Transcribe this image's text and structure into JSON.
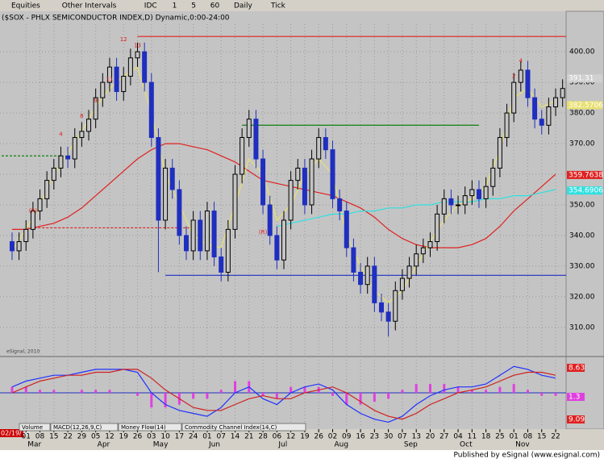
{
  "toolbar": {
    "items": [
      "Equities",
      "Other Intervals",
      "IDC",
      "1",
      "5",
      "60",
      "Daily",
      "Tick"
    ]
  },
  "chart_data": {
    "type": "candlestick",
    "title": "($SOX - PHLX SEMICONDUCTOR INDEX,D) Dynamic,0:00-24:00",
    "watermark": "eSignal, 2010",
    "start_label": "02/19/10",
    "xlim": [
      -1.5,
      79.5
    ],
    "ylim": [
      301,
      409
    ],
    "yticks": [
      {
        "value": 310,
        "label": "310.00"
      },
      {
        "value": 320,
        "label": "320.00"
      },
      {
        "value": 330,
        "label": "330.00"
      },
      {
        "value": 340,
        "label": "340.00"
      },
      {
        "value": 350,
        "label": "350.00"
      },
      {
        "value": 360,
        "label": "360.00"
      },
      {
        "value": 370,
        "label": "370.00"
      },
      {
        "value": 380,
        "label": "380.00"
      },
      {
        "value": 390,
        "label": "390.00"
      },
      {
        "value": 400,
        "label": "400.00"
      }
    ],
    "xticks": [
      {
        "value": 2,
        "label": "01"
      },
      {
        "value": 4,
        "label": "08"
      },
      {
        "value": 6,
        "label": "15"
      },
      {
        "value": 8,
        "label": "22"
      },
      {
        "value": 10,
        "label": "29"
      },
      {
        "value": 12,
        "label": "05"
      },
      {
        "value": 14,
        "label": "12"
      },
      {
        "value": 16,
        "label": "19"
      },
      {
        "value": 18,
        "label": "26"
      },
      {
        "value": 20,
        "label": "03"
      },
      {
        "value": 22,
        "label": "10"
      },
      {
        "value": 24,
        "label": "17"
      },
      {
        "value": 26,
        "label": "24"
      },
      {
        "value": 28,
        "label": "01"
      },
      {
        "value": 30,
        "label": "07"
      },
      {
        "value": 32,
        "label": "14"
      },
      {
        "value": 34,
        "label": "21"
      },
      {
        "value": 36,
        "label": "28"
      },
      {
        "value": 38,
        "label": "06"
      },
      {
        "value": 40,
        "label": "12"
      },
      {
        "value": 42,
        "label": "19"
      },
      {
        "value": 44,
        "label": "26"
      },
      {
        "value": 46,
        "label": "02"
      },
      {
        "value": 48,
        "label": "09"
      },
      {
        "value": 50,
        "label": "16"
      },
      {
        "value": 52,
        "label": "23"
      },
      {
        "value": 54,
        "label": "30"
      },
      {
        "value": 56,
        "label": "07"
      },
      {
        "value": 58,
        "label": "13"
      },
      {
        "value": 60,
        "label": "20"
      },
      {
        "value": 62,
        "label": "27"
      },
      {
        "value": 64,
        "label": "04"
      },
      {
        "value": 66,
        "label": "11"
      },
      {
        "value": 68,
        "label": "18"
      },
      {
        "value": 70,
        "label": "25"
      },
      {
        "value": 72,
        "label": "01"
      },
      {
        "value": 74,
        "label": "08"
      },
      {
        "value": 76,
        "label": "15"
      },
      {
        "value": 78,
        "label": "22"
      }
    ],
    "months": [
      {
        "value": 2,
        "label": "Mar"
      },
      {
        "value": 12,
        "label": "Apr"
      },
      {
        "value": 20,
        "label": "May"
      },
      {
        "value": 28,
        "label": "Jun"
      },
      {
        "value": 38,
        "label": "Jul"
      },
      {
        "value": 46,
        "label": "Aug"
      },
      {
        "value": 56,
        "label": "Sep"
      },
      {
        "value": 64,
        "label": "Oct"
      },
      {
        "value": 72,
        "label": "Nov"
      }
    ],
    "open": [
      338,
      335,
      338,
      342,
      348,
      352,
      358,
      362,
      366,
      365,
      372,
      374,
      378,
      385,
      390,
      395,
      387,
      392,
      398,
      400,
      390,
      372,
      345,
      362,
      355,
      340,
      335,
      345,
      335,
      348,
      333,
      328,
      342,
      360,
      372,
      378,
      365,
      350,
      340,
      332,
      345,
      358,
      362,
      350,
      365,
      372,
      368,
      352,
      348,
      336,
      328,
      324,
      330,
      318,
      315,
      312,
      322,
      326,
      330,
      334,
      336,
      338,
      347,
      352,
      350,
      350,
      353,
      355,
      352,
      356,
      362,
      372,
      380,
      390,
      394,
      385,
      378,
      376,
      382,
      385
    ],
    "high": [
      341,
      341,
      345,
      351,
      355,
      361,
      365,
      369,
      369,
      375,
      377,
      381,
      388,
      393,
      398,
      398,
      395,
      401,
      403,
      403,
      393,
      375,
      365,
      365,
      358,
      343,
      348,
      348,
      351,
      351,
      336,
      345,
      363,
      375,
      381,
      381,
      368,
      353,
      343,
      348,
      361,
      365,
      365,
      368,
      375,
      375,
      371,
      355,
      351,
      339,
      331,
      333,
      333,
      321,
      318,
      325,
      329,
      333,
      337,
      339,
      341,
      350,
      355,
      355,
      353,
      356,
      358,
      358,
      359,
      365,
      375,
      383,
      393,
      397,
      397,
      388,
      381,
      385,
      388,
      391
    ],
    "low": [
      332,
      332,
      335,
      339,
      345,
      349,
      355,
      359,
      362,
      362,
      369,
      371,
      375,
      382,
      387,
      384,
      384,
      389,
      395,
      387,
      369,
      328,
      342,
      352,
      337,
      332,
      332,
      332,
      332,
      330,
      325,
      325,
      339,
      357,
      369,
      362,
      347,
      337,
      329,
      329,
      342,
      355,
      347,
      347,
      362,
      365,
      349,
      345,
      333,
      325,
      321,
      321,
      315,
      312,
      307,
      309,
      319,
      323,
      327,
      331,
      333,
      335,
      344,
      347,
      347,
      347,
      350,
      349,
      349,
      353,
      359,
      369,
      377,
      387,
      382,
      375,
      373,
      373,
      379,
      382
    ],
    "close": [
      335,
      338,
      342,
      348,
      352,
      358,
      362,
      366,
      365,
      372,
      374,
      378,
      385,
      390,
      395,
      387,
      392,
      398,
      400,
      390,
      372,
      345,
      362,
      355,
      340,
      335,
      345,
      335,
      348,
      333,
      328,
      342,
      360,
      372,
      378,
      365,
      350,
      340,
      332,
      345,
      358,
      362,
      350,
      365,
      372,
      368,
      352,
      348,
      336,
      328,
      324,
      330,
      318,
      315,
      312,
      322,
      326,
      330,
      334,
      336,
      338,
      347,
      352,
      350,
      350,
      353,
      355,
      352,
      356,
      362,
      372,
      380,
      390,
      394,
      385,
      378,
      376,
      382,
      385,
      388
    ],
    "up_color": "#000000",
    "down_color": "#1f2fbf",
    "indicator_x": [
      0,
      2,
      4,
      6,
      8,
      10,
      12,
      14,
      16,
      18,
      20,
      22,
      24,
      26,
      28,
      30,
      32,
      34,
      36,
      38,
      40,
      42,
      44,
      46,
      48,
      50,
      52,
      54,
      56,
      58,
      60,
      62,
      64,
      66,
      68,
      70,
      72,
      74,
      76,
      78
    ],
    "overlays": [
      {
        "color": "#e02020",
        "values": [
          342,
          342,
          343,
          344,
          346,
          349,
          353,
          357,
          361,
          365,
          368,
          370,
          370,
          369,
          368,
          366,
          364,
          361,
          358,
          357,
          356,
          355,
          354,
          353,
          351,
          349,
          346,
          342,
          339,
          337,
          336,
          336,
          336,
          337,
          339,
          343,
          348,
          352,
          356,
          360
        ]
      },
      {
        "color": "#e8e070",
        "values": [
          335,
          342,
          350,
          360,
          367,
          374,
          382,
          388,
          392,
          395,
          380,
          360,
          350,
          340,
          337,
          336,
          350,
          365,
          360,
          345,
          350,
          360,
          365,
          360,
          340,
          330,
          322,
          318,
          322,
          330,
          338,
          345,
          350,
          352,
          356,
          368,
          385,
          388,
          382,
          384
        ]
      },
      {
        "color": "#30e0e0",
        "values": [
          null,
          null,
          null,
          null,
          null,
          null,
          null,
          null,
          null,
          null,
          null,
          null,
          null,
          null,
          null,
          null,
          null,
          null,
          null,
          343,
          344,
          345,
          346,
          347,
          347,
          348,
          348,
          349,
          349,
          350,
          350,
          351,
          351,
          351,
          352,
          352,
          353,
          353,
          354,
          355
        ]
      }
    ],
    "levels": [
      {
        "value": 405,
        "color": "#e02020",
        "from": 18,
        "to": 79.5,
        "dash": false
      },
      {
        "value": 366,
        "color": "#108010",
        "from": -1.5,
        "to": 7,
        "dash": true
      },
      {
        "value": 376,
        "color": "#108010",
        "from": 33,
        "to": 67,
        "dash": false
      },
      {
        "value": 342.5,
        "color": "#e02020",
        "from": 2,
        "to": 26,
        "dash": true
      },
      {
        "value": 327,
        "color": "#2030c0",
        "from": 22,
        "to": 79.5,
        "dash": false
      }
    ],
    "price_labels": [
      {
        "value": 391.31,
        "label": "391.31",
        "color": "#d0d0d0",
        "text": "#ffffff"
      },
      {
        "value": 382.5706,
        "label": "382.5706",
        "color": "#e8e070",
        "text": "#ffffff"
      },
      {
        "value": 359.7638,
        "label": "359.7638",
        "color": "#e02020",
        "text": "#ffffff"
      },
      {
        "value": 354.6906,
        "label": "354.6906",
        "color": "#30e0e0",
        "text": "#ffffff"
      }
    ],
    "markers": [
      {
        "x": 16,
        "y": 404,
        "label": "12",
        "color": "#e02020"
      },
      {
        "x": 18,
        "y": 402,
        "label": "13",
        "color": "#e02020"
      },
      {
        "x": 14,
        "y": 391,
        "label": "11",
        "color": "#e02020"
      },
      {
        "x": 12,
        "y": 384,
        "label": "9",
        "color": "#e02020"
      },
      {
        "x": 10,
        "y": 379,
        "label": "8",
        "color": "#e02020"
      },
      {
        "x": 7,
        "y": 373,
        "label": "4",
        "color": "#e02020"
      },
      {
        "x": 3,
        "y": 348,
        "label": "(R)",
        "color": "#e02020"
      },
      {
        "x": 36,
        "y": 341,
        "label": "(R)",
        "color": "#e02020"
      },
      {
        "x": 73,
        "y": 397,
        "label": "4",
        "color": "#e02020"
      },
      {
        "x": 72,
        "y": 392,
        "label": "2",
        "color": "#e02020"
      }
    ],
    "macd": {
      "ylim": [
        -11,
        11
      ],
      "lines": [
        {
          "color": "#2030ff",
          "values": [
            2,
            4,
            5,
            6,
            6,
            7,
            8,
            8,
            8,
            7,
            0,
            -4,
            -6,
            -7,
            -8,
            -5,
            0,
            2,
            -2,
            -4,
            0,
            2,
            3,
            1,
            -4,
            -7,
            -9,
            -10,
            -8,
            -4,
            -1,
            1,
            2,
            2,
            3,
            6,
            9,
            8,
            6,
            5
          ]
        },
        {
          "color": "#d02020",
          "values": [
            0,
            2,
            4,
            5,
            6,
            6,
            7,
            7,
            8,
            8,
            5,
            1,
            -2,
            -5,
            -6,
            -6,
            -4,
            -2,
            -1,
            -2,
            -2,
            0,
            1,
            2,
            0,
            -3,
            -6,
            -8,
            -9,
            -7,
            -4,
            -2,
            0,
            1,
            2,
            4,
            6,
            7,
            7,
            6
          ]
        }
      ],
      "hist": {
        "color": "#e040e0",
        "values": [
          2,
          2,
          1,
          1,
          0,
          1,
          1,
          1,
          0,
          -1,
          -5,
          -5,
          -4,
          -2,
          -2,
          1,
          4,
          4,
          -1,
          -2,
          2,
          2,
          2,
          -1,
          -4,
          -4,
          -3,
          -2,
          1,
          3,
          3,
          3,
          2,
          1,
          1,
          2,
          3,
          1,
          -1,
          -1
        ]
      },
      "labels": [
        {
          "label": "8.63",
          "color": "#e02020"
        },
        {
          "label": "1.3",
          "color": "#e040e0"
        },
        {
          "label": "9.09",
          "color": "#e02020"
        }
      ]
    },
    "tabs": [
      "Volume",
      "MACD(12,26,9,C)",
      "Money Flow(14)",
      "Commodity Channel Index(14,C)"
    ]
  },
  "footer": "Published by eSignal (www.esignal.com)"
}
